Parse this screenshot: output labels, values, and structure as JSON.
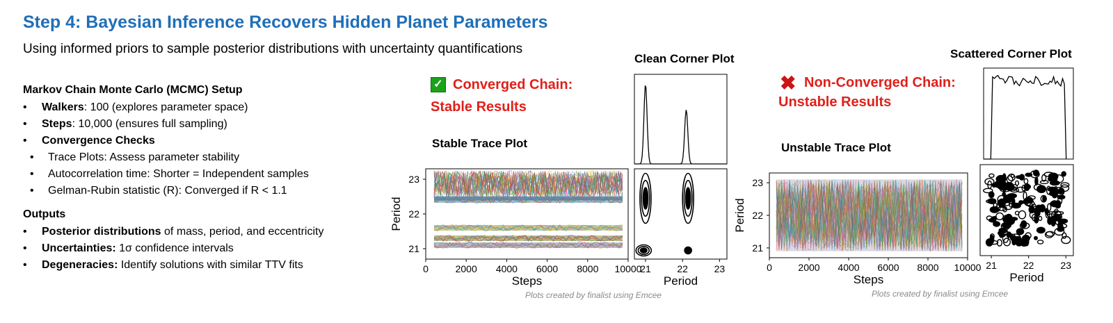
{
  "title": "Step 4: Bayesian Inference Recovers Hidden Planet Parameters",
  "subtitle": "Using informed priors to sample posterior distributions with uncertainty quantifications",
  "setup": {
    "heading": "Markov Chain Monte Carlo (MCMC) Setup",
    "walkers_bold": "Walkers",
    "walkers_text": ": 100 (explores parameter space)",
    "steps_bold": "Steps",
    "steps_text": ": 10,000 (ensures full sampling)",
    "checks_bold": "Convergence Checks",
    "sub": [
      "Trace Plots: Assess parameter stability",
      "Autocorrelation time: Shorter = Independent samples",
      "Gelman-Rubin statistic (R): Converged if R < 1.1"
    ]
  },
  "outputs": {
    "heading": "Outputs",
    "posterior_bold": "Posterior distributions",
    "posterior_text": " of mass, period, and eccentricity",
    "unc_bold": "Uncertainties:",
    "unc_text": " 1σ confidence intervals",
    "deg_bold": "Degeneracies:",
    "deg_text": " Identify solutions with similar TTV fits"
  },
  "converged": {
    "icon": "check-icon",
    "line1": "Converged Chain:",
    "line2": "Stable Results",
    "trace_label": "Stable Trace Plot",
    "corner_label": "Clean Corner Plot",
    "credit": "Plots created by finalist using Emcee"
  },
  "nonconverged": {
    "icon": "cross-icon",
    "line1": "Non-Converged Chain:",
    "line2": "Unstable Results",
    "trace_label": "Unstable Trace Plot",
    "corner_label": "Scattered Corner Plot",
    "credit": "Plots created by finalist using Emcee"
  },
  "chart_data": [
    {
      "type": "line",
      "name": "stable-trace",
      "xlabel": "Steps",
      "ylabel": "Period",
      "xlim": [
        0,
        10000
      ],
      "ylim": [
        20.7,
        23.3
      ],
      "xticks": [
        "0",
        "2000",
        "4000",
        "6000",
        "8000",
        "10000"
      ],
      "yticks": [
        "21",
        "22",
        "23"
      ],
      "band_levels": [
        21.3,
        21.1,
        21.6,
        22.4
      ],
      "walkers": 100
    },
    {
      "type": "area",
      "name": "clean-corner",
      "xlabel": "Period",
      "xlim": [
        20.7,
        23.2
      ],
      "ylim": [
        20.7,
        23.3
      ],
      "xticks": [
        "21",
        "22",
        "23"
      ],
      "histogram_peaks": [
        21.0,
        22.1
      ],
      "contour_centers": [
        [
          21.0,
          22.45
        ],
        [
          22.15,
          22.45
        ],
        [
          20.95,
          20.95
        ],
        [
          22.15,
          20.95
        ]
      ]
    },
    {
      "type": "line",
      "name": "unstable-trace",
      "xlabel": "Steps",
      "ylabel": "Period",
      "xlim": [
        0,
        10000
      ],
      "ylim": [
        20.7,
        23.3
      ],
      "xticks": [
        "0",
        "2000",
        "4000",
        "6000",
        "8000",
        "10000"
      ],
      "yticks": [
        "21",
        "22",
        "23"
      ],
      "range": [
        20.9,
        23.1
      ],
      "walkers": 100
    },
    {
      "type": "area",
      "name": "scattered-corner",
      "xlabel": "Period",
      "xlim": [
        20.7,
        23.2
      ],
      "xticks": [
        "21",
        "22",
        "23"
      ],
      "histogram_range": [
        20.9,
        23.0
      ]
    }
  ]
}
